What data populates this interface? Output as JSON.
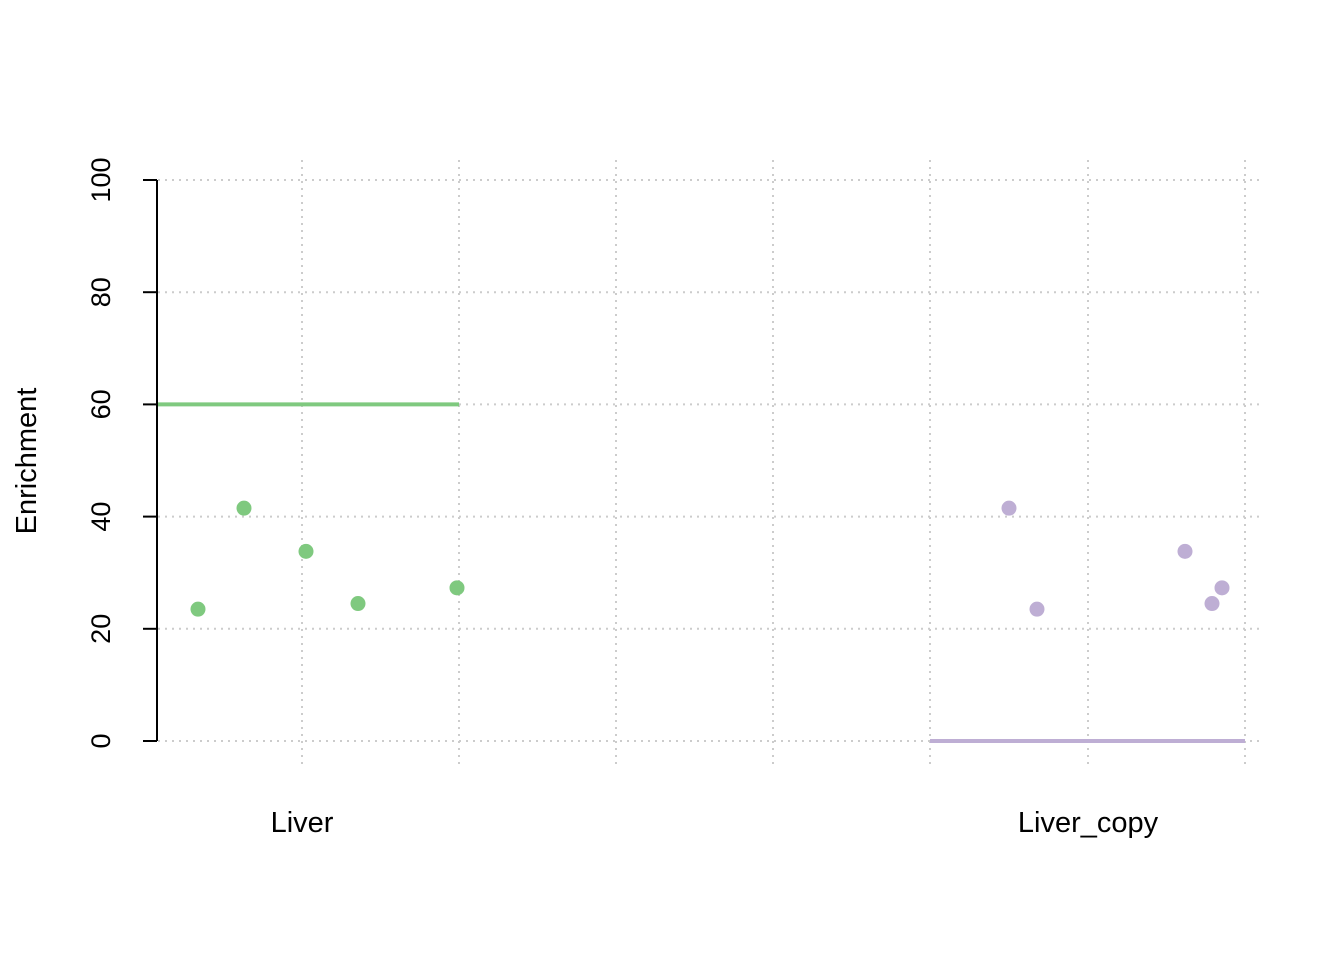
{
  "chart_data": {
    "type": "scatter",
    "title": "",
    "ylabel": "Enrichment",
    "xlabel": "",
    "ylim": [
      0,
      100
    ],
    "yticks": [
      0,
      20,
      40,
      60,
      80,
      100
    ],
    "grid": true,
    "groups": [
      {
        "label": "Liver",
        "color": "#7fc97f",
        "reference_line": 60,
        "values": [
          23.5,
          41.5,
          33.8,
          24.5,
          27.3
        ]
      },
      {
        "label": "Liver_copy",
        "color": "#beaed4",
        "reference_line": 0,
        "values": [
          41.5,
          23.5,
          33.8,
          24.5,
          27.3
        ]
      }
    ]
  }
}
